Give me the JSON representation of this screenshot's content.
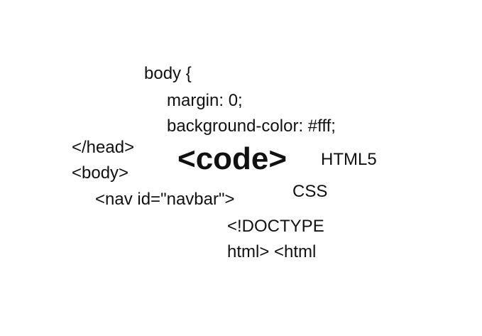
{
  "code_fragments": {
    "body_open": "body {",
    "margin": "margin: 0;",
    "background": "background-color: #fff;",
    "head_close": "</head>",
    "body_tag": "<body>",
    "nav": "<nav id=\"navbar\">",
    "doctype": "<!DOCTYPE",
    "html_open": "html> <html"
  },
  "keywords": {
    "code": "<code>",
    "html5": "HTML5",
    "css": "CSS"
  },
  "colors": {
    "background": "#ffffff",
    "text": "#111111"
  }
}
